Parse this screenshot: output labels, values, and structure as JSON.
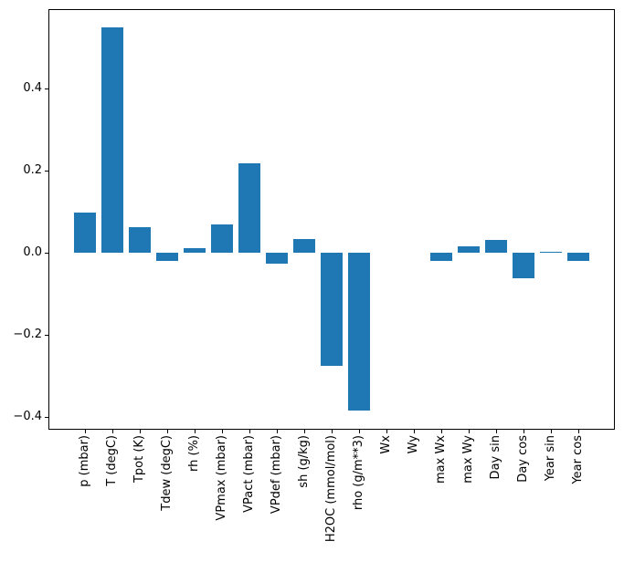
{
  "figure": {
    "background_color": "#ffffff",
    "axis_color": "#000000"
  },
  "chart_data": {
    "type": "bar",
    "title": "",
    "xlabel": "",
    "ylabel": "",
    "bar_color": "#1f77b4",
    "categories": [
      "p (mbar)",
      "T (degC)",
      "Tpot (K)",
      "Tdew (degC)",
      "rh (%)",
      "VPmax (mbar)",
      "VPact (mbar)",
      "VPdef (mbar)",
      "sh (g/kg)",
      "H2OC (mmol/mol)",
      "rho (g/m**3)",
      "Wx",
      "Wy",
      "max Wx",
      "max Wy",
      "Day sin",
      "Day cos",
      "Year sin",
      "Year cos"
    ],
    "values": [
      0.099,
      0.549,
      0.063,
      -0.019,
      0.013,
      0.069,
      0.219,
      -0.025,
      0.035,
      -0.274,
      -0.383,
      0.0,
      0.0,
      -0.02,
      0.017,
      0.033,
      -0.061,
      0.003,
      -0.019
    ],
    "ylim": [
      -0.43,
      0.594
    ],
    "yticks": [
      0.4,
      0.2,
      0.0,
      -0.2,
      -0.4
    ],
    "ytick_labels": [
      "0.4",
      "0.2",
      "0.0",
      "−0.2",
      "−0.4"
    ],
    "x_tick_rotation": 90,
    "grid": false,
    "legend": null
  }
}
